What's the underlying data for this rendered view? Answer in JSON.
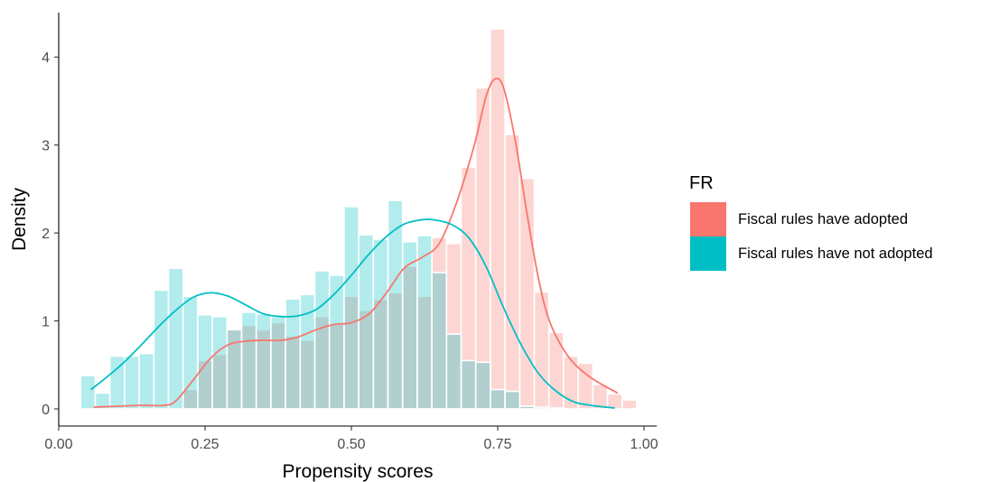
{
  "chart_data": {
    "type": "bar",
    "xlabel": "Propensity scores",
    "ylabel": "Density",
    "xlim": [
      0,
      1
    ],
    "ylim": [
      0,
      4.4
    ],
    "x_ticks": [
      "0.00",
      "0.25",
      "0.50",
      "0.75",
      "1.00"
    ],
    "y_ticks": [
      "0",
      "1",
      "2",
      "3",
      "4"
    ],
    "grid": false,
    "legend": {
      "title": "FR",
      "position": "right",
      "entries": [
        {
          "label": "Fiscal rules have adopted",
          "color": "#F8766D"
        },
        {
          "label": "Fiscal rules have not adopted",
          "color": "#00BFC4"
        }
      ]
    },
    "histograms": [
      {
        "name": "Fiscal rules have adopted",
        "color": "#F8766D",
        "bin_centers": [
          0.225,
          0.25,
          0.275,
          0.3,
          0.325,
          0.35,
          0.375,
          0.4,
          0.425,
          0.45,
          0.475,
          0.5,
          0.525,
          0.55,
          0.575,
          0.6,
          0.625,
          0.65,
          0.675,
          0.7,
          0.725,
          0.75,
          0.775,
          0.8,
          0.825,
          0.85,
          0.875,
          0.9,
          0.925,
          0.95,
          0.975
        ],
        "values": [
          0.22,
          0.55,
          0.62,
          0.9,
          0.95,
          0.9,
          0.98,
          0.83,
          0.78,
          1.05,
          0.97,
          1.28,
          1.12,
          1.24,
          1.32,
          1.62,
          1.28,
          1.95,
          1.88,
          2.75,
          3.65,
          4.32,
          3.12,
          2.62,
          1.33,
          0.87,
          0.6,
          0.52,
          0.28,
          0.17,
          0.1
        ]
      },
      {
        "name": "Fiscal rules have not adopted",
        "color": "#00BFC4",
        "bin_centers": [
          0.05,
          0.075,
          0.1,
          0.125,
          0.15,
          0.175,
          0.2,
          0.225,
          0.25,
          0.275,
          0.3,
          0.325,
          0.35,
          0.375,
          0.4,
          0.425,
          0.45,
          0.475,
          0.5,
          0.525,
          0.55,
          0.575,
          0.6,
          0.625,
          0.65,
          0.675,
          0.7,
          0.725,
          0.75,
          0.775,
          0.8,
          0.825,
          0.85
        ],
        "values": [
          0.38,
          0.18,
          0.6,
          0.6,
          0.63,
          1.35,
          1.6,
          1.28,
          1.07,
          1.05,
          0.9,
          1.1,
          1.08,
          1.05,
          1.25,
          1.3,
          1.57,
          1.52,
          2.3,
          1.98,
          1.93,
          2.37,
          1.9,
          1.97,
          1.55,
          0.85,
          0.55,
          0.53,
          0.22,
          0.2,
          0.03,
          0.02,
          0.01
        ]
      }
    ],
    "series": [
      {
        "name": "Fiscal rules have adopted",
        "color": "#F8766D",
        "x": [
          0.06,
          0.1,
          0.14,
          0.18,
          0.2,
          0.23,
          0.26,
          0.29,
          0.32,
          0.35,
          0.38,
          0.41,
          0.44,
          0.47,
          0.5,
          0.53,
          0.56,
          0.59,
          0.62,
          0.65,
          0.68,
          0.71,
          0.73,
          0.745,
          0.76,
          0.78,
          0.8,
          0.82,
          0.84,
          0.87,
          0.9,
          0.93,
          0.955
        ],
        "y": [
          0.02,
          0.03,
          0.04,
          0.04,
          0.09,
          0.33,
          0.58,
          0.73,
          0.77,
          0.78,
          0.78,
          0.82,
          0.9,
          0.96,
          0.98,
          1.08,
          1.32,
          1.6,
          1.72,
          1.88,
          2.35,
          3.0,
          3.55,
          3.75,
          3.65,
          3.05,
          2.22,
          1.47,
          0.97,
          0.6,
          0.4,
          0.27,
          0.18
        ]
      },
      {
        "name": "Fiscal rules have not adopted",
        "color": "#00BFC4",
        "x": [
          0.055,
          0.08,
          0.11,
          0.14,
          0.17,
          0.2,
          0.23,
          0.26,
          0.29,
          0.32,
          0.35,
          0.38,
          0.41,
          0.44,
          0.47,
          0.5,
          0.53,
          0.56,
          0.59,
          0.62,
          0.64,
          0.67,
          0.7,
          0.73,
          0.76,
          0.79,
          0.82,
          0.85,
          0.88,
          0.91,
          0.95
        ],
        "y": [
          0.22,
          0.35,
          0.52,
          0.72,
          0.93,
          1.12,
          1.27,
          1.32,
          1.28,
          1.18,
          1.08,
          1.05,
          1.06,
          1.13,
          1.3,
          1.52,
          1.76,
          1.96,
          2.1,
          2.15,
          2.15,
          2.1,
          1.95,
          1.62,
          1.15,
          0.73,
          0.4,
          0.2,
          0.08,
          0.04,
          0.01
        ]
      }
    ]
  }
}
